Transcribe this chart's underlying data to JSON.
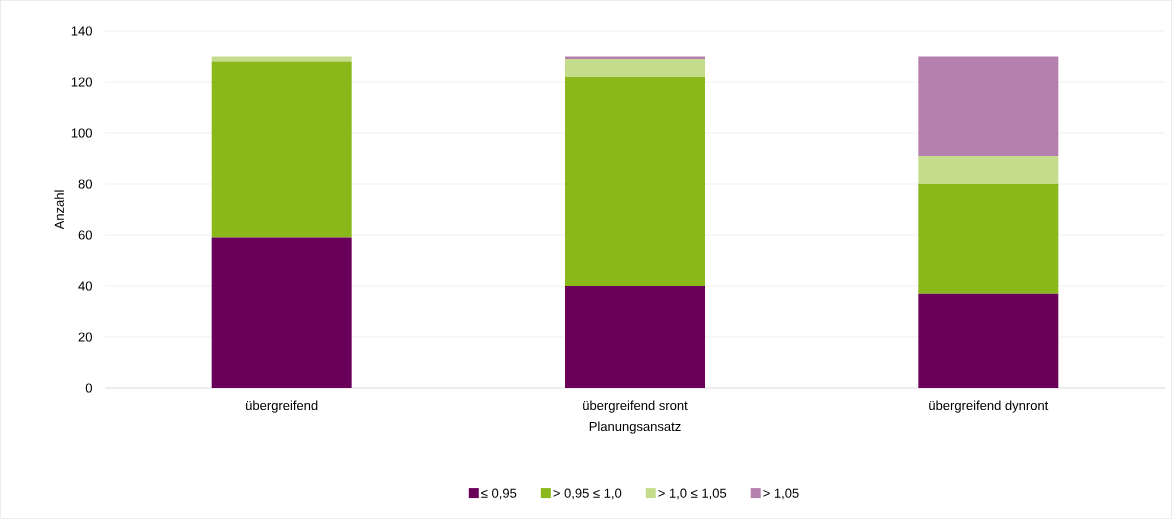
{
  "chart_data": {
    "type": "bar",
    "stacked": true,
    "xlabel": "Planungsansatz",
    "ylabel": "Anzahl",
    "categories": [
      "übergreifend",
      "übergreifend sront",
      "übergreifend dynront"
    ],
    "series": [
      {
        "name": "≤ 0,95",
        "color": "#6b005a",
        "values": [
          59,
          40,
          37
        ]
      },
      {
        "name": "> 0,95 ≤ 1,0",
        "color": "#8ab81a",
        "values": [
          69,
          82,
          43
        ]
      },
      {
        "name": "> 1,0 ≤ 1,05",
        "color": "#c5dc8d",
        "values": [
          2,
          7,
          11
        ]
      },
      {
        "name": "> 1,05",
        "color": "#b580ad",
        "values": [
          0,
          1,
          39
        ]
      }
    ],
    "ylim": [
      0,
      140
    ],
    "yticks": [
      0,
      20,
      40,
      60,
      80,
      100,
      120,
      140
    ],
    "grid": "y",
    "legend": "bottom"
  }
}
